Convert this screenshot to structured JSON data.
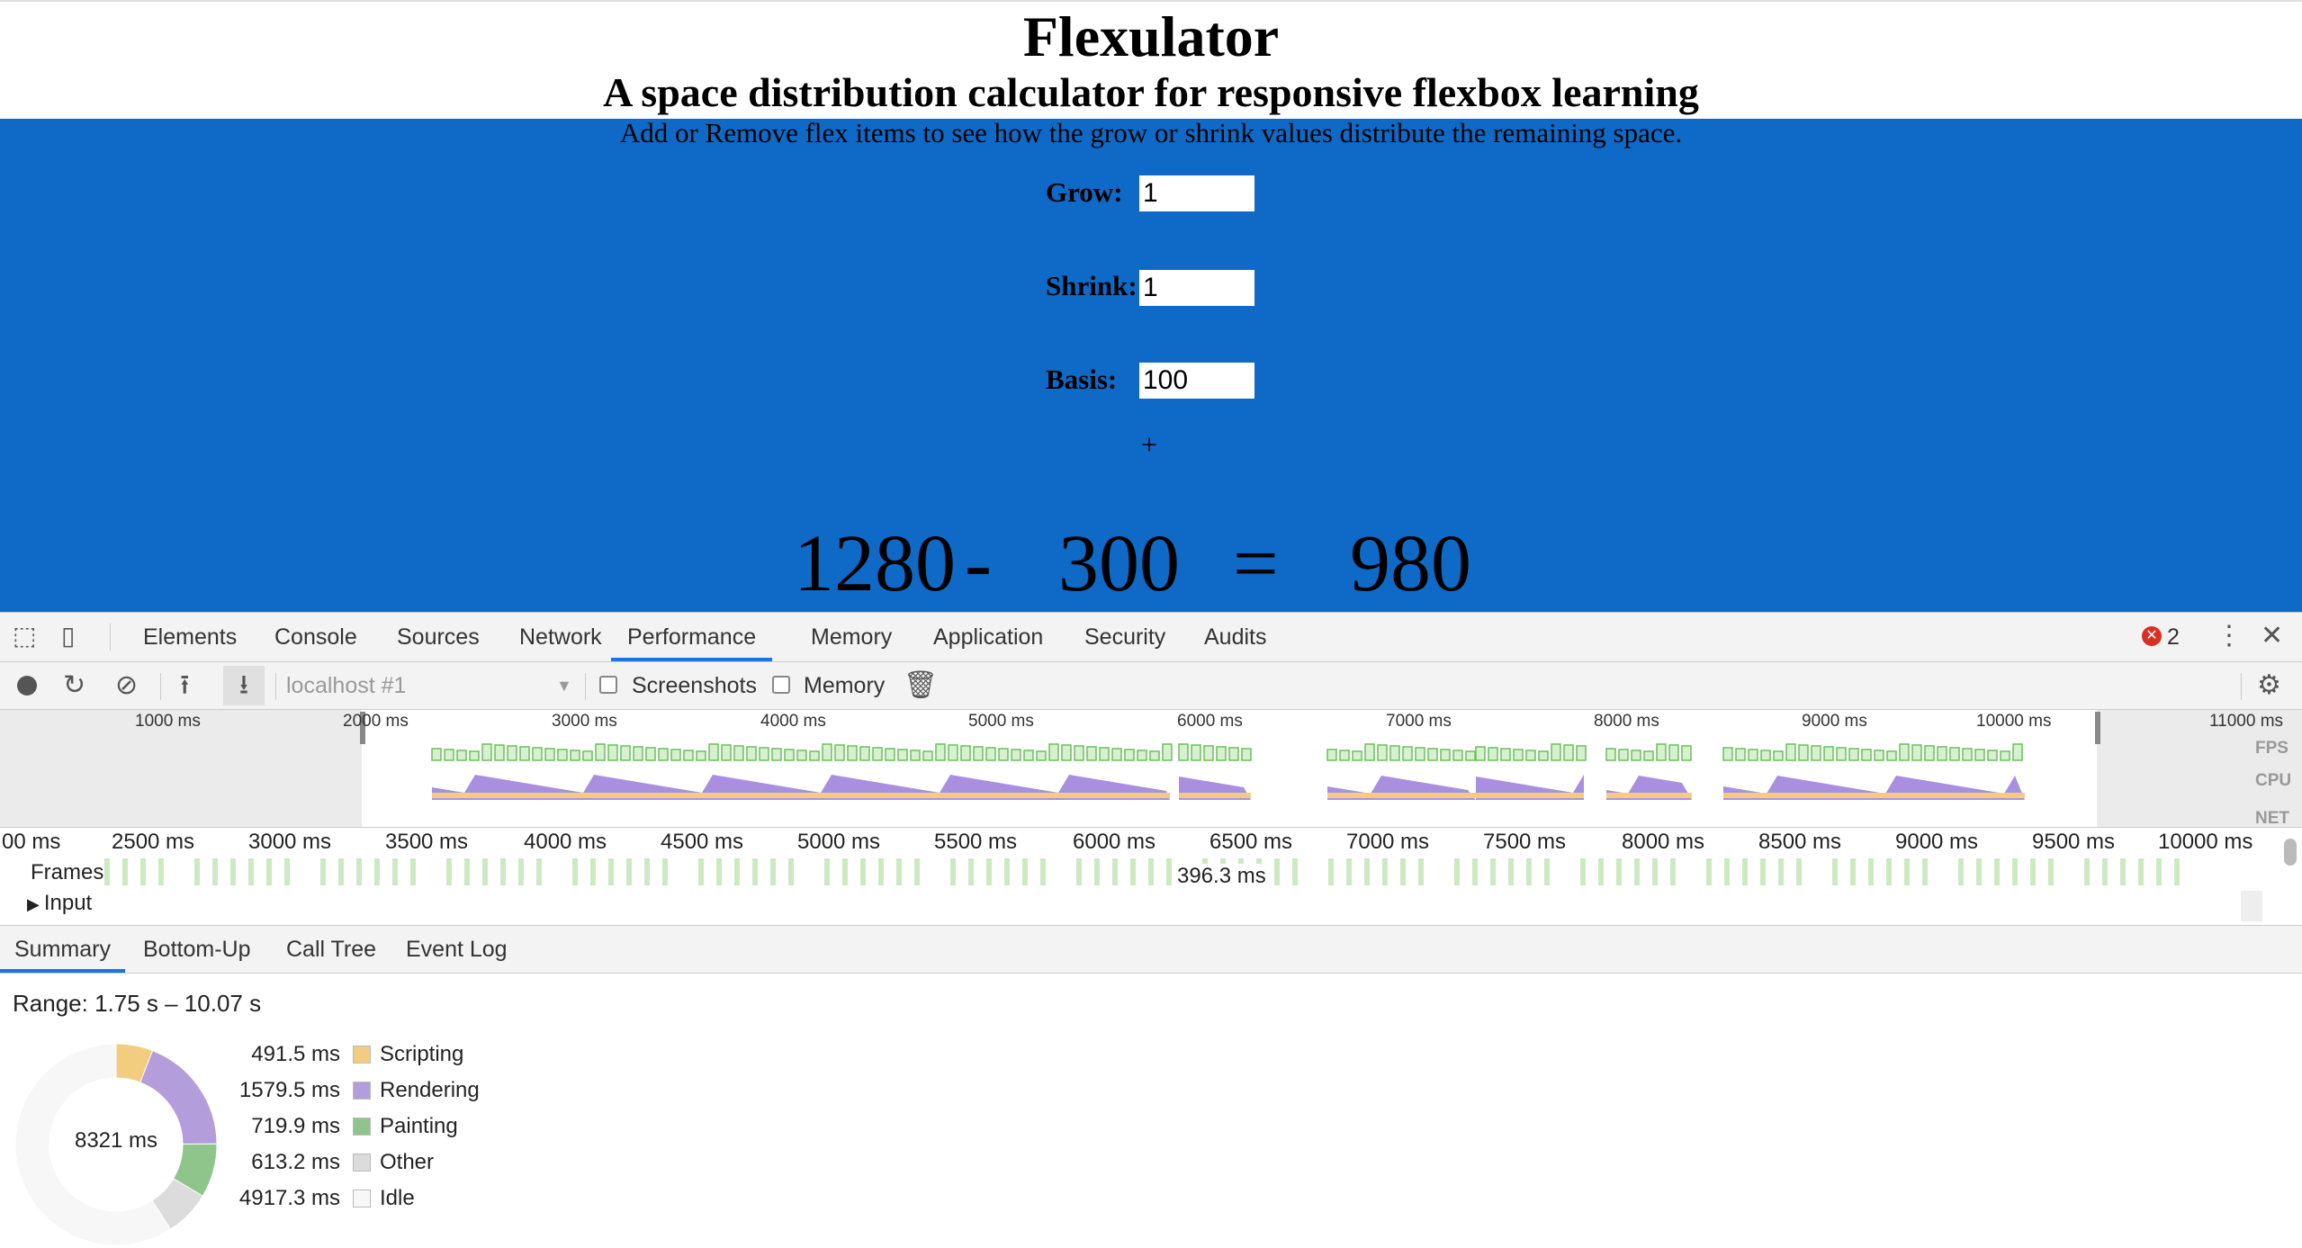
{
  "page": {
    "title": "Flexulator",
    "subtitle": "A space distribution calculator for responsive flexbox learning",
    "description": "Add or Remove flex items to see how the grow or shrink values distribute the remaining space.",
    "fields": [
      {
        "label": "Grow:",
        "value": "1"
      },
      {
        "label": "Shrink:",
        "value": "1"
      },
      {
        "label": "Basis:",
        "value": "100"
      }
    ],
    "add_button": "+",
    "equation": {
      "left": "1280",
      "minus": "-",
      "middle": "300",
      "equals": "=",
      "right": "980"
    }
  },
  "devtools": {
    "tabs": [
      "Elements",
      "Console",
      "Sources",
      "Network",
      "Performance",
      "Memory",
      "Application",
      "Security",
      "Audits"
    ],
    "active_tab": "Performance",
    "error_count": "2",
    "toolbar": {
      "profile_select": "localhost #1",
      "screenshots_label": "Screenshots",
      "memory_label": "Memory"
    },
    "overview_ticks": [
      "1000 ms",
      "2000 ms",
      "3000 ms",
      "4000 ms",
      "5000 ms",
      "6000 ms",
      "7000 ms",
      "8000 ms",
      "9000 ms",
      "10000 ms",
      "11000 ms"
    ],
    "overview_tracks": [
      "FPS",
      "CPU",
      "NET"
    ],
    "flame_ticks": [
      "00 ms",
      "2500 ms",
      "3000 ms",
      "3500 ms",
      "4000 ms",
      "4500 ms",
      "5000 ms",
      "5500 ms",
      "6000 ms",
      "6500 ms",
      "7000 ms",
      "7500 ms",
      "8000 ms",
      "8500 ms",
      "9000 ms",
      "9500 ms",
      "10000 ms"
    ],
    "frames_label": "Frames",
    "input_label": "Input",
    "frame_tooltip": "396.3 ms",
    "subtabs": [
      "Summary",
      "Bottom-Up",
      "Call Tree",
      "Event Log"
    ],
    "active_subtab": "Summary",
    "summary": {
      "range": "Range: 1.75 s – 10.07 s",
      "total": "8321 ms",
      "items": [
        {
          "value": "491.5 ms",
          "name": "Scripting",
          "ms": 491.5,
          "color": "#f2cd80"
        },
        {
          "value": "1579.5 ms",
          "name": "Rendering",
          "ms": 1579.5,
          "color": "#b39ddb"
        },
        {
          "value": "719.9 ms",
          "name": "Painting",
          "ms": 719.9,
          "color": "#8fc58b"
        },
        {
          "value": "613.2 ms",
          "name": "Other",
          "ms": 613.2,
          "color": "#dcdcdc"
        },
        {
          "value": "4917.3 ms",
          "name": "Idle",
          "ms": 4917.3,
          "color": "#f7f7f7"
        }
      ]
    }
  }
}
